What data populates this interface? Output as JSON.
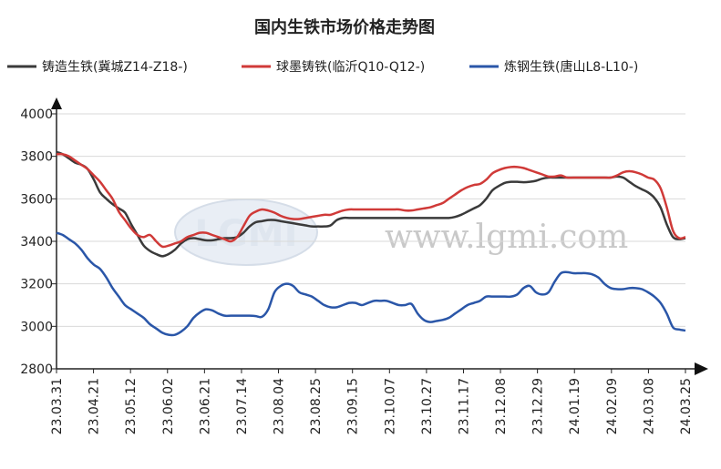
{
  "chart_data": {
    "type": "line",
    "title": "国内生铁市场价格走势图",
    "watermark": {
      "logo": "LGMI",
      "url": "www.lgmi.com"
    },
    "ylim": [
      2800,
      4000
    ],
    "yticks": [
      2800,
      3000,
      3200,
      3400,
      3600,
      3800,
      4000
    ],
    "x_ticks": [
      "23.03.31",
      "23.04.21",
      "23.05.12",
      "23.06.02",
      "23.06.21",
      "23.07.14",
      "23.08.04",
      "23.08.25",
      "23.09.15",
      "23.10.07",
      "23.10.27",
      "23.11.17",
      "23.12.08",
      "23.12.29",
      "24.01.19",
      "24.02.09",
      "24.03.08",
      "24.03.25"
    ],
    "grid": true,
    "legend_position": "top",
    "series": [
      {
        "name": "铸造生铁(冀城Z14-Z18-)",
        "color": "#3a3a3a",
        "values": [
          3820,
          3810,
          3790,
          3770,
          3760,
          3740,
          3690,
          3630,
          3600,
          3575,
          3555,
          3535,
          3480,
          3430,
          3380,
          3355,
          3340,
          3330,
          3340,
          3360,
          3390,
          3410,
          3415,
          3410,
          3405,
          3405,
          3410,
          3415,
          3415,
          3420,
          3440,
          3470,
          3490,
          3495,
          3500,
          3500,
          3495,
          3490,
          3485,
          3480,
          3475,
          3470,
          3470,
          3470,
          3475,
          3500,
          3510,
          3510,
          3510,
          3510,
          3510,
          3510,
          3510,
          3510,
          3510,
          3510,
          3510,
          3510,
          3510,
          3510,
          3510,
          3510,
          3510,
          3510,
          3515,
          3525,
          3540,
          3555,
          3570,
          3600,
          3640,
          3660,
          3675,
          3680,
          3680,
          3678,
          3680,
          3685,
          3695,
          3700,
          3700,
          3700,
          3700,
          3700,
          3700,
          3700,
          3700,
          3700,
          3700,
          3700,
          3705,
          3700,
          3680,
          3660,
          3645,
          3630,
          3605,
          3560,
          3480,
          3420,
          3410,
          3415
        ]
      },
      {
        "name": "球墨铸铁(临沂Q10-Q12-)",
        "color": "#d03a38",
        "values": [
          3810,
          3810,
          3800,
          3780,
          3760,
          3740,
          3710,
          3680,
          3640,
          3600,
          3540,
          3500,
          3460,
          3430,
          3420,
          3430,
          3400,
          3375,
          3380,
          3390,
          3400,
          3420,
          3430,
          3440,
          3440,
          3430,
          3420,
          3410,
          3400,
          3420,
          3470,
          3520,
          3540,
          3550,
          3545,
          3535,
          3520,
          3510,
          3505,
          3505,
          3510,
          3515,
          3520,
          3525,
          3525,
          3535,
          3545,
          3550,
          3550,
          3550,
          3550,
          3550,
          3550,
          3550,
          3550,
          3550,
          3545,
          3545,
          3550,
          3555,
          3560,
          3570,
          3580,
          3600,
          3620,
          3640,
          3655,
          3665,
          3670,
          3690,
          3720,
          3735,
          3745,
          3750,
          3750,
          3745,
          3735,
          3725,
          3715,
          3705,
          3705,
          3710,
          3700,
          3700,
          3700,
          3700,
          3700,
          3700,
          3700,
          3700,
          3710,
          3725,
          3730,
          3725,
          3715,
          3700,
          3690,
          3650,
          3560,
          3450,
          3415,
          3420
        ]
      },
      {
        "name": "炼钢生铁(唐山L8-L10-)",
        "color": "#2a56a8",
        "values": [
          3440,
          3430,
          3410,
          3390,
          3360,
          3320,
          3290,
          3270,
          3230,
          3180,
          3140,
          3100,
          3080,
          3060,
          3040,
          3010,
          2990,
          2970,
          2960,
          2960,
          2975,
          3000,
          3040,
          3065,
          3080,
          3075,
          3060,
          3050,
          3050,
          3050,
          3050,
          3050,
          3048,
          3045,
          3080,
          3160,
          3190,
          3200,
          3190,
          3160,
          3150,
          3140,
          3120,
          3100,
          3090,
          3090,
          3100,
          3110,
          3110,
          3100,
          3110,
          3120,
          3120,
          3120,
          3110,
          3100,
          3100,
          3105,
          3060,
          3030,
          3020,
          3025,
          3030,
          3040,
          3060,
          3080,
          3100,
          3110,
          3120,
          3140,
          3140,
          3140,
          3140,
          3140,
          3150,
          3180,
          3190,
          3160,
          3150,
          3160,
          3210,
          3250,
          3255,
          3250,
          3250,
          3250,
          3245,
          3230,
          3200,
          3180,
          3175,
          3175,
          3180,
          3180,
          3175,
          3160,
          3140,
          3110,
          3060,
          2995,
          2985,
          2980
        ]
      }
    ]
  }
}
